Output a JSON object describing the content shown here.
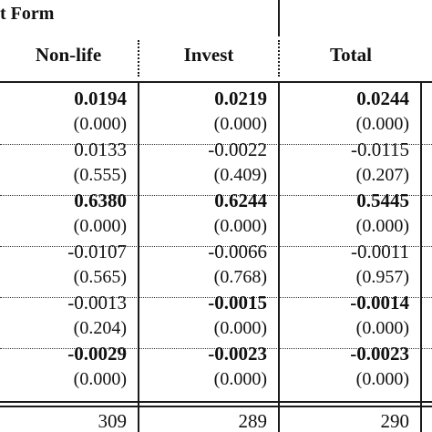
{
  "table": {
    "group_title": "t Form",
    "columns": [
      "Non-life",
      "Invest",
      "Total"
    ],
    "rows": [
      {
        "values": [
          "0.0194",
          "0.0219",
          "0.0244"
        ],
        "bold": [
          true,
          true,
          true
        ]
      },
      {
        "values": [
          "(0.000)",
          "(0.000)",
          "(0.000)"
        ],
        "bold": [
          false,
          false,
          false
        ]
      },
      {
        "values": [
          "0.0133",
          "-0.0022",
          "-0.0115"
        ],
        "bold": [
          false,
          false,
          false
        ]
      },
      {
        "values": [
          "(0.555)",
          "(0.409)",
          "(0.207)"
        ],
        "bold": [
          false,
          false,
          false
        ]
      },
      {
        "values": [
          "0.6380",
          "0.6244",
          "0.5445"
        ],
        "bold": [
          true,
          true,
          true
        ]
      },
      {
        "values": [
          "(0.000)",
          "(0.000)",
          "(0.000)"
        ],
        "bold": [
          false,
          false,
          false
        ]
      },
      {
        "values": [
          "-0.0107",
          "-0.0066",
          "-0.0011"
        ],
        "bold": [
          false,
          false,
          false
        ]
      },
      {
        "values": [
          "(0.565)",
          "(0.768)",
          "(0.957)"
        ],
        "bold": [
          false,
          false,
          false
        ]
      },
      {
        "values": [
          "-0.0013",
          "-0.0015",
          "-0.0014"
        ],
        "bold": [
          false,
          true,
          true
        ]
      },
      {
        "values": [
          "(0.204)",
          "(0.000)",
          "(0.000)"
        ],
        "bold": [
          false,
          false,
          false
        ]
      },
      {
        "values": [
          "-0.0029",
          "-0.0023",
          "-0.0023"
        ],
        "bold": [
          true,
          true,
          true
        ]
      },
      {
        "values": [
          "(0.000)",
          "(0.000)",
          "(0.000)"
        ],
        "bold": [
          false,
          false,
          false
        ]
      }
    ],
    "obs": [
      "309",
      "289",
      "290"
    ]
  }
}
